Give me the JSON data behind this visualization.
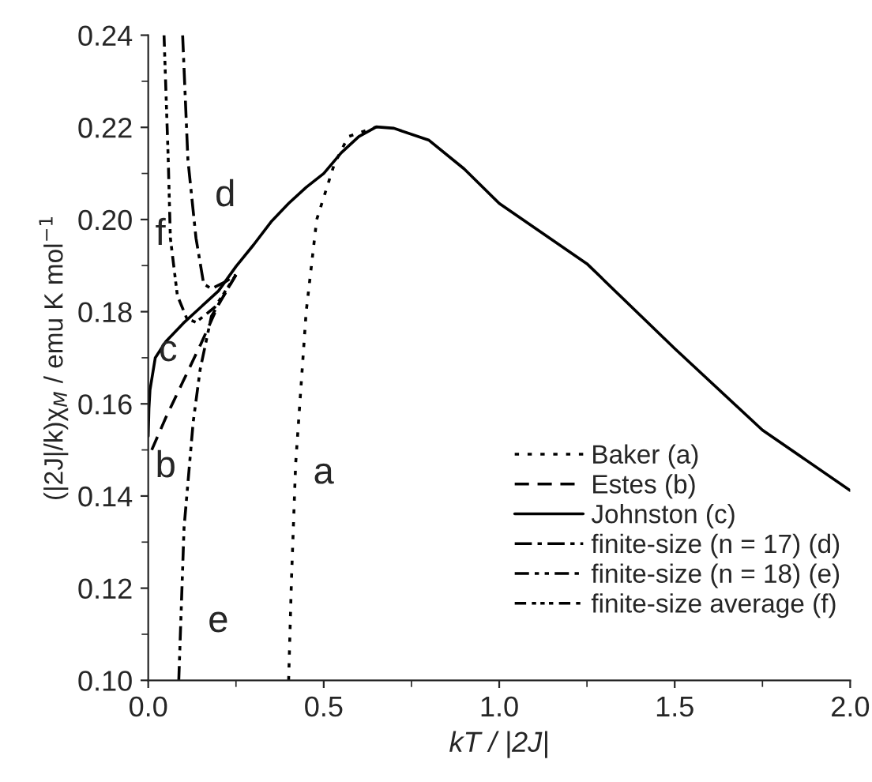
{
  "chart_data": {
    "type": "line",
    "xlabel": "kT / |2J|",
    "ylabel": "(|2J|/k)χ$_{M}$ / emu K mol$^{−1}$",
    "xlim": [
      0,
      2.0
    ],
    "ylim": [
      0.1,
      0.24
    ],
    "xticks": [
      {
        "value": 0,
        "label": "0.0"
      },
      0.5,
      {
        "value": 1,
        "label": "1.0"
      },
      1.5,
      {
        "value": 2,
        "label": "2.0"
      }
    ],
    "yticks": [
      {
        "value": 0.1,
        "label": "0.10"
      },
      0.12,
      0.14,
      0.16,
      0.18,
      {
        "value": 0.2,
        "label": "0.20"
      },
      0.22,
      0.24
    ],
    "grid": false,
    "legend": "bottom right",
    "marker": "none",
    "series": [
      {
        "name": "Baker (a)",
        "color": "#000000",
        "line_style": "dotted",
        "x": [
          0.4,
          0.408,
          0.42,
          0.45,
          0.48,
          0.53,
          0.57,
          0.65
        ],
        "values": [
          0.1,
          0.1217,
          0.147,
          0.18,
          0.2,
          0.212,
          0.218,
          0.2201
        ]
      },
      {
        "name": "Estes (b)",
        "color": "#000000",
        "line_style": "dashed",
        "x": [
          0.01,
          0.05,
          0.1,
          0.15,
          0.2,
          0.25
        ],
        "values": [
          0.15,
          0.157,
          0.165,
          0.173,
          0.1815,
          0.188
        ]
      },
      {
        "name": "Johnston (c)",
        "color": "#000000",
        "line_style": "solid",
        "x": [
          0,
          0.002,
          0.005,
          0.02,
          0.05,
          0.1,
          0.15,
          0.2,
          0.25,
          0.3,
          0.35,
          0.4,
          0.45,
          0.5,
          0.55,
          0.6,
          0.65,
          0.7,
          0.8,
          0.9,
          1.0,
          1.25,
          1.5,
          1.75,
          2.0
        ],
        "values": [
          0.153,
          0.159,
          0.163,
          0.17,
          0.1735,
          0.1775,
          0.181,
          0.1845,
          0.1898,
          0.1945,
          0.1995,
          0.2035,
          0.207,
          0.21,
          0.2145,
          0.218,
          0.2201,
          0.2198,
          0.2172,
          0.211,
          0.2035,
          0.1904,
          0.172,
          0.1543,
          0.1412
        ]
      },
      {
        "name": "finite-size (n = 17) (d)",
        "color": "#000000",
        "line_style": "dashdot",
        "x": [
          0.098,
          0.113,
          0.136,
          0.158,
          0.18,
          0.22,
          0.25
        ],
        "values": [
          0.24,
          0.213,
          0.196,
          0.186,
          0.185,
          0.1865,
          0.188
        ]
      },
      {
        "name": "finite-size (n = 18) (e)",
        "color": "#000000",
        "line_style": "dashdotdot",
        "x": [
          0.087,
          0.102,
          0.128,
          0.148,
          0.18,
          0.25
        ],
        "values": [
          0.1,
          0.1331,
          0.156,
          0.1675,
          0.179,
          0.188
        ]
      },
      {
        "name": "finite-size average (f)",
        "color": "#000000",
        "line_style": "dashdotdotdot",
        "x": [
          0.045,
          0.057,
          0.063,
          0.083,
          0.11,
          0.136,
          0.19,
          0.25
        ],
        "values": [
          0.24,
          0.213,
          0.196,
          0.1835,
          0.1785,
          0.1777,
          0.181,
          0.188
        ]
      }
    ],
    "annotations": [
      "a",
      "b",
      "c",
      "d",
      "e",
      "f"
    ]
  }
}
